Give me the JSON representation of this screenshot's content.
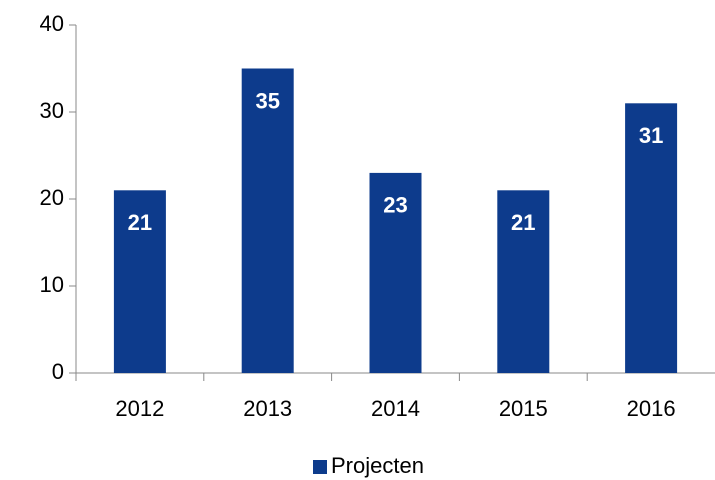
{
  "chart_data": {
    "type": "bar",
    "categories": [
      "2012",
      "2013",
      "2014",
      "2015",
      "2016"
    ],
    "series": [
      {
        "name": "Projecten",
        "color": "#0d3b8c",
        "values": [
          21,
          35,
          23,
          21,
          31
        ]
      }
    ],
    "ylim": [
      0,
      40
    ],
    "yticks": [
      0,
      10,
      20,
      30,
      40
    ],
    "grid": false,
    "legend": "bottom"
  }
}
